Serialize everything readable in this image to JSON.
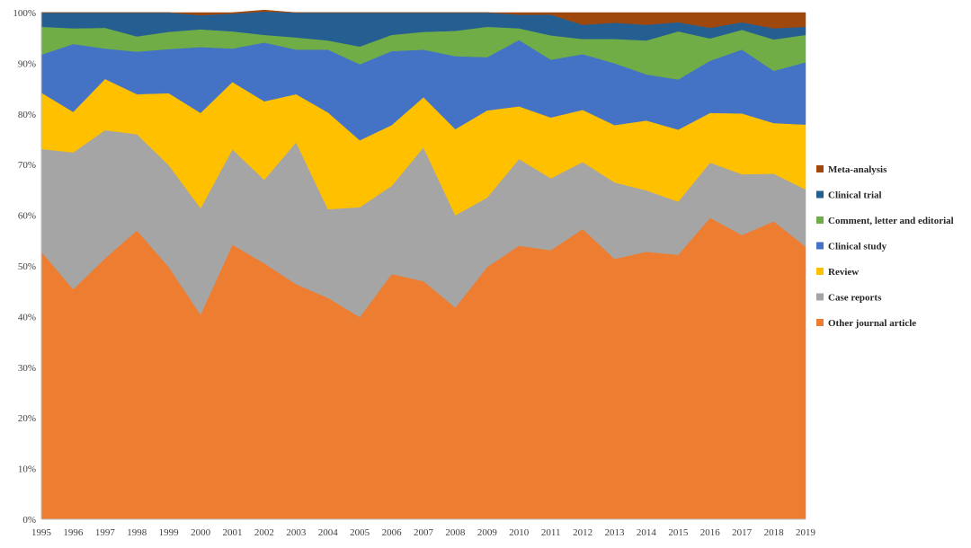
{
  "chart_data": {
    "type": "area",
    "stacked": true,
    "normalized": true,
    "x": [
      "1995",
      "1996",
      "1997",
      "1998",
      "1999",
      "2000",
      "2001",
      "2002",
      "2003",
      "2004",
      "2005",
      "2006",
      "2007",
      "2008",
      "2009",
      "2010",
      "2011",
      "2012",
      "2013",
      "2014",
      "2015",
      "2016",
      "2017",
      "2018",
      "2019"
    ],
    "y_ticks": [
      "0%",
      "10%",
      "20%",
      "30%",
      "40%",
      "50%",
      "60%",
      "70%",
      "80%",
      "90%",
      "100%"
    ],
    "ylim": [
      0,
      100
    ],
    "legend_position": "right",
    "series": [
      {
        "name": "Other journal article",
        "color": "#ED7D31",
        "values": [
          52.8,
          45.4,
          51.5,
          57.0,
          49.8,
          40.4,
          54.2,
          50.5,
          46.4,
          43.7,
          39.9,
          48.4,
          47.0,
          41.8,
          49.8,
          54.0,
          53.1,
          57.3,
          51.4,
          52.8,
          52.2,
          59.5,
          56.1,
          58.8,
          53.8
        ]
      },
      {
        "name": "Case reports",
        "color": "#A5A5A5",
        "values": [
          20.3,
          27.0,
          25.3,
          19.0,
          20.1,
          21.0,
          18.8,
          16.5,
          28.0,
          17.5,
          21.7,
          17.4,
          26.4,
          18.2,
          13.7,
          17.1,
          14.2,
          13.2,
          15.1,
          12.1,
          10.5,
          10.9,
          12.0,
          9.4,
          11.3
        ]
      },
      {
        "name": "Review",
        "color": "#FFC000",
        "values": [
          11.1,
          8.0,
          10.1,
          7.9,
          14.2,
          18.8,
          13.3,
          15.5,
          9.5,
          19.1,
          13.2,
          12.0,
          9.9,
          17.0,
          17.2,
          10.4,
          12.0,
          10.3,
          11.3,
          13.8,
          14.2,
          9.8,
          12.0,
          10.0,
          12.8
        ]
      },
      {
        "name": "Clinical study",
        "color": "#4472C4",
        "values": [
          7.5,
          13.4,
          6.0,
          8.4,
          8.7,
          13.0,
          6.6,
          11.6,
          8.8,
          12.4,
          15.0,
          14.6,
          9.4,
          14.4,
          10.5,
          13.1,
          11.4,
          11.0,
          12.2,
          9.1,
          9.9,
          10.3,
          12.6,
          10.3,
          12.3
        ]
      },
      {
        "name": "Comment, letter and editorial",
        "color": "#70AD47",
        "values": [
          5.5,
          3.1,
          4.1,
          3.0,
          3.4,
          3.5,
          3.4,
          1.5,
          2.4,
          1.8,
          3.5,
          3.2,
          3.5,
          5.0,
          6.0,
          2.3,
          4.8,
          3.0,
          4.8,
          6.7,
          9.5,
          4.4,
          3.9,
          6.2,
          5.4
        ]
      },
      {
        "name": "Clinical trial",
        "color": "#255E91",
        "values": [
          2.8,
          3.1,
          3.0,
          4.7,
          3.8,
          2.8,
          3.5,
          4.6,
          4.9,
          5.5,
          6.7,
          4.4,
          3.8,
          3.6,
          2.8,
          2.7,
          4.1,
          2.8,
          3.2,
          3.1,
          1.8,
          2.1,
          1.5,
          2.2,
          1.6
        ]
      },
      {
        "name": "Meta-analysis",
        "color": "#9E480E",
        "values": [
          0.0,
          0.0,
          0.0,
          0.0,
          0.0,
          0.5,
          0.2,
          0.3,
          0.0,
          0.0,
          0.0,
          0.0,
          0.0,
          0.0,
          0.0,
          0.4,
          0.4,
          2.4,
          2.0,
          2.4,
          1.9,
          3.0,
          1.9,
          3.1,
          2.8
        ]
      }
    ],
    "legend_order": [
      "Meta-analysis",
      "Clinical trial",
      "Comment, letter and editorial",
      "Clinical study",
      "Review",
      "Case reports",
      "Other journal article"
    ]
  }
}
